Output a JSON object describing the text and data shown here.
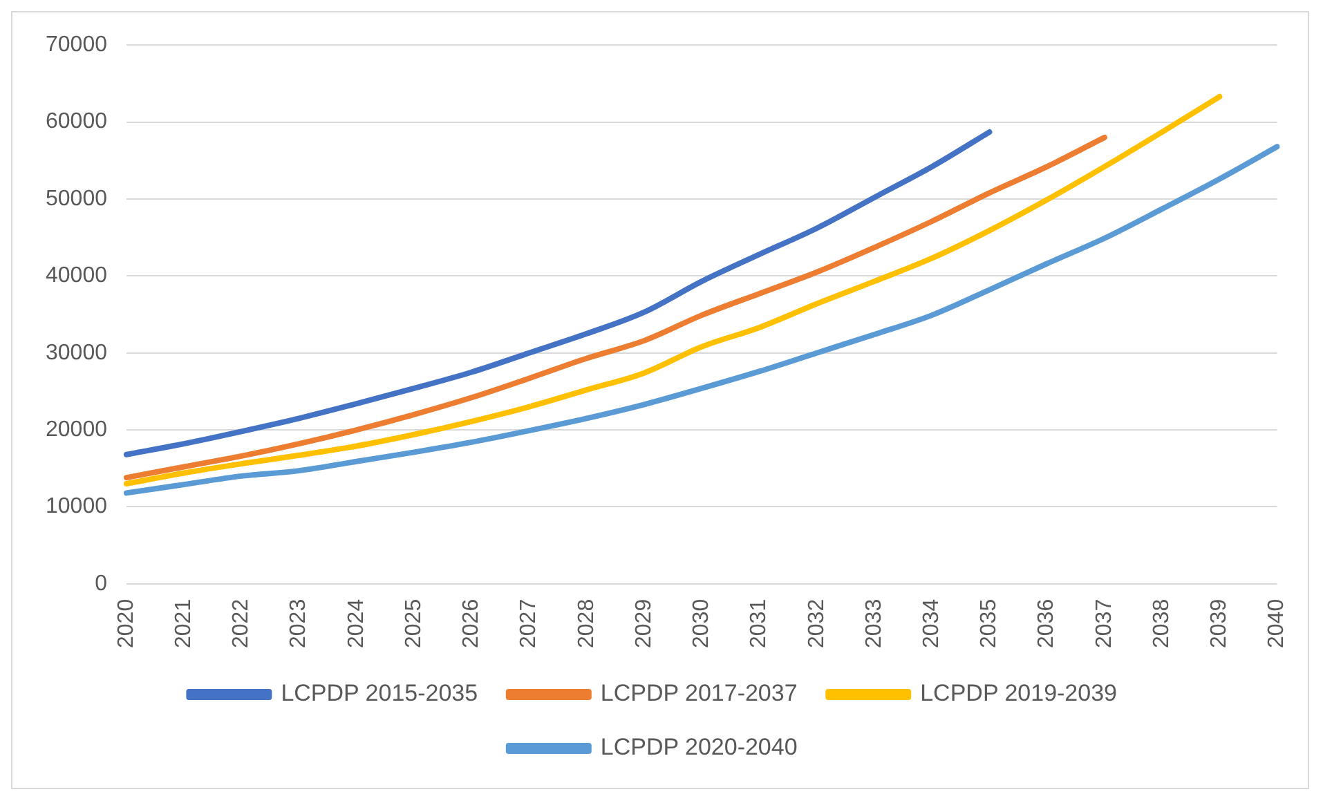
{
  "chart_data": {
    "type": "line",
    "categories": [
      "2020",
      "2021",
      "2022",
      "2023",
      "2024",
      "2025",
      "2026",
      "2027",
      "2028",
      "2029",
      "2030",
      "2031",
      "2032",
      "2033",
      "2034",
      "2035",
      "2036",
      "2037",
      "2038",
      "2039",
      "2040"
    ],
    "series": [
      {
        "name": "LCPDP 2015-2035",
        "color": "#4472c4",
        "values": [
          16800,
          18200,
          19800,
          21500,
          23400,
          25400,
          27500,
          30000,
          32500,
          35300,
          39300,
          42800,
          46200,
          50200,
          54200,
          58700,
          null,
          null,
          null,
          null,
          null
        ]
      },
      {
        "name": "LCPDP 2017-2037",
        "color": "#ed7d31",
        "values": [
          13800,
          15200,
          16600,
          18200,
          20000,
          22000,
          24200,
          26700,
          29300,
          31600,
          34900,
          37700,
          40500,
          43700,
          47100,
          50800,
          54200,
          58000,
          null,
          null,
          null
        ]
      },
      {
        "name": "LCPDP 2019-2039",
        "color": "#ffc000",
        "values": [
          13000,
          14400,
          15600,
          16700,
          17900,
          19400,
          21100,
          23000,
          25200,
          27400,
          30800,
          33300,
          36400,
          39300,
          42300,
          45900,
          49900,
          54200,
          58700,
          63300,
          null
        ]
      },
      {
        "name": "LCPDP 2020-2040",
        "color": "#5b9bd5",
        "values": [
          11800,
          12900,
          14000,
          14700,
          15900,
          17100,
          18400,
          19900,
          21500,
          23300,
          25400,
          27600,
          30000,
          32400,
          34900,
          38200,
          41600,
          44900,
          48700,
          52600,
          56800
        ]
      }
    ],
    "ylim": [
      0,
      70000
    ],
    "yticks": [
      0,
      10000,
      20000,
      30000,
      40000,
      50000,
      60000,
      70000
    ],
    "grid": "y",
    "legend": "bottom",
    "marker": "none",
    "line_style": "solid"
  }
}
